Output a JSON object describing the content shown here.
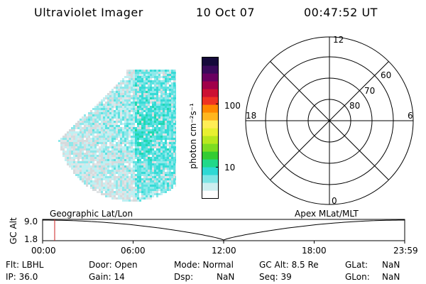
{
  "header": {
    "instrument": "Ultraviolet Imager",
    "date": "10 Oct 07",
    "time": "00:47:52 UT"
  },
  "colorbar": {
    "label": "photon cm⁻²s⁻¹",
    "scale": "log",
    "range": [
      2,
      500
    ],
    "ticks": [
      "100",
      "10"
    ],
    "colors": [
      "#ffffff",
      "#cdeff0",
      "#7ee5e5",
      "#2ed9d4",
      "#22d98a",
      "#33cc33",
      "#7ddc22",
      "#b8e81e",
      "#e8f030",
      "#ffee55",
      "#ffb61e",
      "#ff8800",
      "#ee3322",
      "#cc1133",
      "#a0004a",
      "#6a0060",
      "#3a0a5a",
      "#150a3a"
    ]
  },
  "image_panel": {
    "name": "uv-auroral-image",
    "palette": [
      "#ffffff",
      "#e0e4e6",
      "#d6dadc",
      "#bff0f2",
      "#8fe8ea",
      "#5ee2e0",
      "#36dbd6",
      "#22d8b0",
      "#28d88a"
    ]
  },
  "polar_plot": {
    "labels": {
      "top": "12",
      "left": "18",
      "right": "6",
      "bottom": "0"
    },
    "lat_labels": [
      "60",
      "70",
      "80"
    ]
  },
  "timeline": {
    "left_label": "Geographic Lat/Lon",
    "right_label": "Apex MLat/MLT",
    "y_axis_label": "GC Alt",
    "y_ticks": [
      "9.0",
      "1.8"
    ],
    "x_ticks": [
      "00:00",
      "06:00",
      "12:00",
      "18:00",
      "23:59"
    ],
    "marker_time_hours": 0.8,
    "colors": {
      "marker": "#cc2222"
    }
  },
  "status": {
    "flt": "Flt: LBHL",
    "ip": "IP: 36.0",
    "door": "Door: Open",
    "gain": "Gain: 14",
    "mode": "Mode: Normal",
    "dsp_label": "Dsp:",
    "dsp_value": "NaN",
    "gc_alt": "GC Alt: 8.5 Re",
    "seq": "Seq: 39",
    "glat_label": "GLat:",
    "glat_value": "NaN",
    "glon_label": "GLon:",
    "glon_value": "NaN"
  }
}
